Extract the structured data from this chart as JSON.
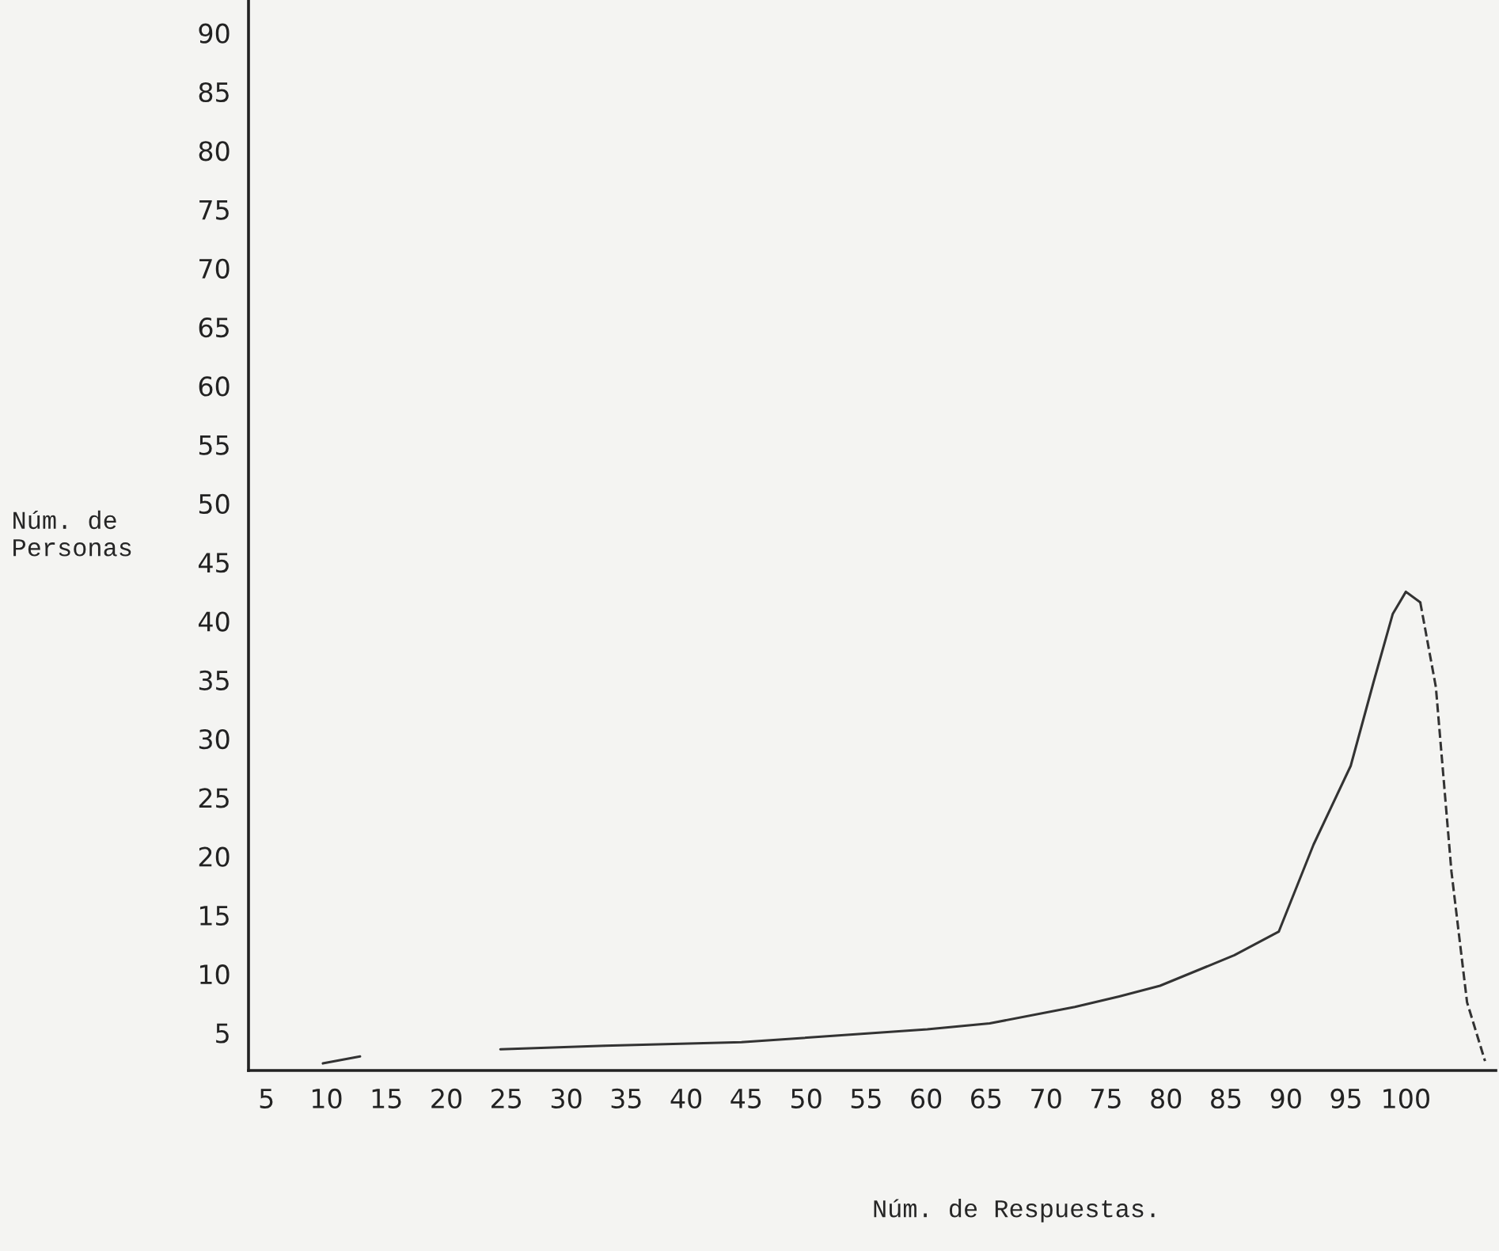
{
  "chart_data": {
    "type": "line",
    "xlabel": "Núm. de Respuestas.",
    "ylabel": "Núm. de\nPersonas",
    "xlim": [
      3.5,
      107.5
    ],
    "ylim": [
      1.8,
      92.7
    ],
    "xticks": [
      5,
      10,
      15,
      20,
      25,
      30,
      35,
      40,
      45,
      50,
      55,
      60,
      65,
      70,
      75,
      80,
      85,
      90,
      95,
      100
    ],
    "yticks": [
      5,
      10,
      15,
      20,
      25,
      30,
      35,
      40,
      45,
      50,
      55,
      60,
      65,
      70,
      75,
      80,
      85,
      90
    ],
    "grid": false,
    "marker": "none",
    "series": [
      {
        "color": "#333333",
        "line_style": "solid",
        "x": [
          9.7,
          12.8,
          18,
          24.5,
          33.2,
          44.6,
          60.1,
          65.3,
          72.4,
          76.1,
          79.5,
          85.7,
          89.4,
          92.3,
          95.4,
          97.3,
          98.9,
          100,
          101.2
        ],
        "values": [
          2.4,
          3.0,
          null,
          3.6,
          3.9,
          4.2,
          5.3,
          5.8,
          7.2,
          8.1,
          9.0,
          11.6,
          13.6,
          21,
          27.7,
          34.8,
          40.6,
          42.5,
          41.6
        ]
      },
      {
        "color": "#333333",
        "line_style": "dashed",
        "x": [
          101.2,
          102.5,
          103.8,
          105.1,
          106.6
        ],
        "values": [
          41.6,
          34.4,
          18.7,
          7.6,
          2.6
        ]
      }
    ]
  }
}
